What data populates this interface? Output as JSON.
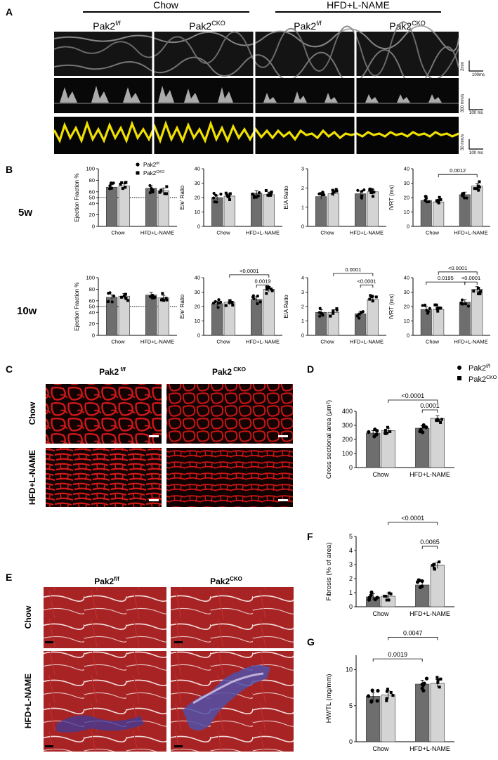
{
  "colors": {
    "wt": "#6e6e6e",
    "ko": "#d4d4d4",
    "echo_yellow": "#f0e000",
    "tissue_red": "#d01818",
    "trichrome_red": "#a82020",
    "fibrosis_blue": "#4a4aa0"
  },
  "panel_letters": {
    "A": "A",
    "B": "B",
    "C": "C",
    "D": "D",
    "E": "E",
    "F": "F",
    "G": "G"
  },
  "panelA": {
    "group_headers": [
      "Chow",
      "HFD+L-NAME"
    ],
    "col_labels": [
      {
        "base": "Pak2",
        "sup": "f/f"
      },
      {
        "base": "Pak2",
        "sup": "CKO"
      },
      {
        "base": "Pak2",
        "sup": "f/f"
      },
      {
        "base": "Pak2",
        "sup": "CKO"
      }
    ],
    "scales": [
      {
        "v": "2mm",
        "h": "100ms"
      },
      {
        "v": "300 mm/s",
        "h": "100 ms"
      },
      {
        "v": "30 mm/s",
        "h": "100 ms"
      }
    ]
  },
  "legend": {
    "wt_base": "Pak2",
    "wt_sup": "f/f",
    "ko_base": "Pak2",
    "ko_sup": "CKO"
  },
  "row_labels": {
    "w5": "5w",
    "w10": "10w"
  },
  "groups": [
    "Chow",
    "HFD+L-NAME"
  ],
  "sectionC": {
    "col_labels": [
      {
        "base": "Pak2",
        "sup": " f/f"
      },
      {
        "base": "Pak2",
        "sup": " CKO"
      }
    ],
    "row_labels": [
      "Chow",
      "HFD+L-NAME"
    ]
  },
  "sectionE": {
    "col_labels": [
      {
        "base": "Pak2",
        "sup": "f/f"
      },
      {
        "base": "Pak2",
        "sup": "CKO"
      }
    ],
    "row_labels": [
      "Chow",
      "HFD+L-NAME"
    ]
  },
  "chart_data": [
    {
      "id": "B-EF-5w",
      "type": "bar",
      "ylabel": "Ejection Fraction %",
      "ylim": [
        0,
        100
      ],
      "yticks": [
        0,
        20,
        40,
        50,
        60,
        80,
        100
      ],
      "refline": 50,
      "categories": [
        "Chow",
        "HFD+L-NAME"
      ],
      "series": [
        {
          "name": "Pak2f/f",
          "values": [
            68,
            66
          ]
        },
        {
          "name": "Pak2CKO",
          "values": [
            70,
            62
          ]
        }
      ],
      "annotations": []
    },
    {
      "id": "B-Ee-5w",
      "type": "bar",
      "ylabel": "E/e' Ratio",
      "ylim": [
        0,
        40
      ],
      "yticks": [
        0,
        10,
        20,
        30,
        40
      ],
      "categories": [
        "Chow",
        "HFD+L-NAME"
      ],
      "series": [
        {
          "name": "Pak2f/f",
          "values": [
            20,
            23
          ]
        },
        {
          "name": "Pak2CKO",
          "values": [
            21,
            22
          ]
        }
      ],
      "annotations": []
    },
    {
      "id": "B-EA-5w",
      "type": "bar",
      "ylabel": "E/A Ratio",
      "ylim": [
        0,
        3
      ],
      "yticks": [
        0,
        1,
        2,
        3
      ],
      "categories": [
        "Chow",
        "HFD+L-NAME"
      ],
      "series": [
        {
          "name": "Pak2f/f",
          "values": [
            1.55,
            1.7
          ]
        },
        {
          "name": "Pak2CKO",
          "values": [
            1.7,
            1.8
          ]
        }
      ],
      "annotations": []
    },
    {
      "id": "B-IVRT-5w",
      "type": "bar",
      "ylabel": "IVRT (ms)",
      "ylim": [
        0,
        40
      ],
      "yticks": [
        0,
        10,
        20,
        30,
        40
      ],
      "categories": [
        "Chow",
        "HFD+L-NAME"
      ],
      "series": [
        {
          "name": "Pak2f/f",
          "values": [
            18,
            22
          ]
        },
        {
          "name": "Pak2CKO",
          "values": [
            17,
            28
          ]
        }
      ],
      "annotations": [
        {
          "text": "0.0012",
          "from": [
            0,
            1
          ],
          "to": [
            1,
            1
          ],
          "y": 36
        }
      ]
    },
    {
      "id": "B-EF-10w",
      "type": "bar",
      "ylabel": "Ejection Fraction %",
      "ylim": [
        0,
        100
      ],
      "yticks": [
        0,
        20,
        40,
        50,
        60,
        80,
        100
      ],
      "refline": 50,
      "categories": [
        "Chow",
        "HFD+L-NAME"
      ],
      "series": [
        {
          "name": "Pak2f/f",
          "values": [
            66,
            70
          ]
        },
        {
          "name": "Pak2CKO",
          "values": [
            68,
            65
          ]
        }
      ],
      "annotations": []
    },
    {
      "id": "B-Ee-10w",
      "type": "bar",
      "ylabel": "E/e' Ratio",
      "ylim": [
        0,
        40
      ],
      "yticks": [
        0,
        10,
        20,
        30,
        40
      ],
      "categories": [
        "Chow",
        "HFD+L-NAME"
      ],
      "series": [
        {
          "name": "Pak2f/f",
          "values": [
            22,
            25
          ]
        },
        {
          "name": "Pak2CKO",
          "values": [
            23,
            32
          ]
        }
      ],
      "annotations": [
        {
          "text": "<0.0001",
          "from": [
            0,
            1
          ],
          "to": [
            1,
            1
          ],
          "y": 42
        },
        {
          "text": "0.0019",
          "from": [
            1,
            0
          ],
          "to": [
            1,
            1
          ],
          "y": 35
        }
      ]
    },
    {
      "id": "B-EA-10w",
      "type": "bar",
      "ylabel": "E/A Ratio",
      "ylim": [
        0,
        4
      ],
      "yticks": [
        0,
        1,
        2,
        3,
        4
      ],
      "categories": [
        "Chow",
        "HFD+L-NAME"
      ],
      "series": [
        {
          "name": "Pak2f/f",
          "values": [
            1.6,
            1.5
          ]
        },
        {
          "name": "Pak2CKO",
          "values": [
            1.6,
            2.5
          ]
        }
      ],
      "annotations": [
        {
          "text": "0.0001",
          "from": [
            0,
            1
          ],
          "to": [
            1,
            1
          ],
          "y": 4.3
        },
        {
          "text": "<0.0001",
          "from": [
            1,
            0
          ],
          "to": [
            1,
            1
          ],
          "y": 3.5
        }
      ]
    },
    {
      "id": "B-IVRT-10w",
      "type": "bar",
      "ylabel": "IVRT (ms)",
      "ylim": [
        0,
        40
      ],
      "yticks": [
        0,
        10,
        20,
        30,
        40
      ],
      "categories": [
        "Chow",
        "HFD+L-NAME"
      ],
      "series": [
        {
          "name": "Pak2f/f",
          "values": [
            18,
            23
          ]
        },
        {
          "name": "Pak2CKO",
          "values": [
            18,
            32
          ]
        }
      ],
      "annotations": [
        {
          "text": "<0.0001",
          "from": [
            0,
            1
          ],
          "to": [
            1,
            1
          ],
          "y": 44
        },
        {
          "text": "0.0195",
          "from": [
            0,
            0
          ],
          "to": [
            1,
            0
          ],
          "y": 37
        },
        {
          "text": "<0.0001",
          "from": [
            1,
            0
          ],
          "to": [
            1,
            1
          ],
          "y": 37
        }
      ]
    },
    {
      "id": "D",
      "type": "bar",
      "ylabel": "Cross sectional area (μm²)",
      "ylim": [
        0,
        400
      ],
      "yticks": [
        0,
        100,
        200,
        300,
        400
      ],
      "categories": [
        "Chow",
        "HFD+L-NAME"
      ],
      "series": [
        {
          "name": "Pak2f/f",
          "values": [
            245,
            280
          ]
        },
        {
          "name": "Pak2CKO",
          "values": [
            262,
            350
          ]
        }
      ],
      "annotations": [
        {
          "text": "<0.0001",
          "from": [
            0,
            1
          ],
          "to": [
            1,
            1
          ],
          "y": 480
        },
        {
          "text": "0.0001",
          "from": [
            1,
            0
          ],
          "to": [
            1,
            1
          ],
          "y": 410
        }
      ]
    },
    {
      "id": "F",
      "type": "bar",
      "ylabel": "Fibrosis (% of area)",
      "ylim": [
        0,
        5
      ],
      "yticks": [
        0,
        1,
        2,
        3,
        4,
        5
      ],
      "categories": [
        "Chow",
        "HFD+L-NAME"
      ],
      "series": [
        {
          "name": "Pak2f/f",
          "values": [
            0.7,
            1.55
          ]
        },
        {
          "name": "Pak2CKO",
          "values": [
            0.75,
            2.95
          ]
        }
      ],
      "annotations": [
        {
          "text": "<0.0001",
          "from": [
            0,
            1
          ],
          "to": [
            1,
            1
          ],
          "y": 6.0
        },
        {
          "text": "0.0065",
          "from": [
            1,
            0
          ],
          "to": [
            1,
            1
          ],
          "y": 4.3
        }
      ]
    },
    {
      "id": "G",
      "type": "bar",
      "ylabel": "HW/TL (mg/mm)",
      "ylim": [
        0,
        12
      ],
      "yticks": [
        0,
        5,
        10
      ],
      "categories": [
        "Chow",
        "HFD+L-NAME"
      ],
      "series": [
        {
          "name": "Pak2f/f",
          "values": [
            6.3,
            8.0
          ]
        },
        {
          "name": "Pak2CKO",
          "values": [
            6.5,
            8.1
          ]
        }
      ],
      "annotations": [
        {
          "text": "0.0047",
          "from": [
            0,
            1
          ],
          "to": [
            1,
            1
          ],
          "y": 14.5
        },
        {
          "text": "0.0019",
          "from": [
            0,
            0
          ],
          "to": [
            1,
            0
          ],
          "y": 11.5
        }
      ]
    }
  ]
}
